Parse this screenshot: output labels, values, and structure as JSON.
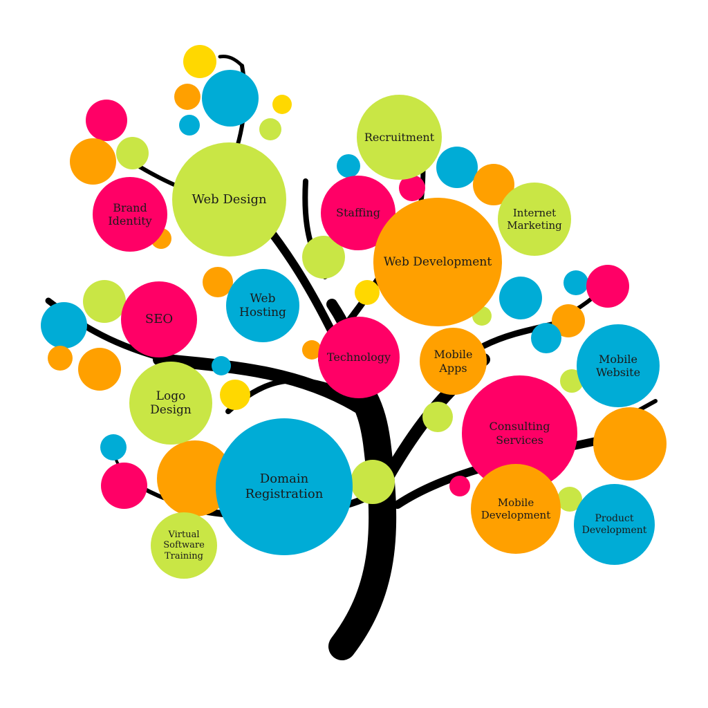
{
  "colors": {
    "pink": "#ff0066",
    "orange": "#ffa000",
    "blue": "#00acd6",
    "green": "#c9e645",
    "yellow": "#ffd800",
    "trunk": "#000000",
    "background": "#ffffff"
  },
  "services": {
    "web_design": "Web Design",
    "brand_identity": "Brand\nIdentity",
    "recruitment": "Recruitment",
    "staffing": "Staffing",
    "web_development": "Web Development",
    "internet_marketing": "Internet\nMarketing",
    "seo": "SEO",
    "web_hosting": "Web\nHosting",
    "technology": "Technology",
    "mobile_apps": "Mobile\nApps",
    "mobile_website": "Mobile\nWebsite",
    "logo_design": "Logo\nDesign",
    "consulting_services": "Consulting\nServices",
    "domain_registration": "Domain\nRegistration",
    "mobile_development": "Mobile\nDevelopment",
    "product_development": "Product\nDevelopment",
    "virtual_software_training": "Virtual\nSoftware\nTraining"
  }
}
